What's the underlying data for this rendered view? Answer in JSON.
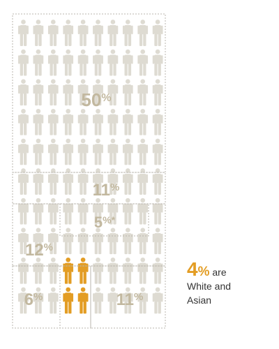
{
  "chart_data": {
    "type": "pictograph",
    "title": "",
    "unit": "%",
    "icons_total": 100,
    "segments": [
      {
        "label": "50",
        "value": 50,
        "symbol": "%",
        "highlight": false
      },
      {
        "label": "11",
        "value": 11,
        "symbol": "%",
        "highlight": false
      },
      {
        "label": "5",
        "value": 5,
        "symbol": "%*",
        "highlight": false
      },
      {
        "label": "12",
        "value": 12,
        "symbol": "%",
        "highlight": false
      },
      {
        "label": "6",
        "value": 6,
        "symbol": "%",
        "highlight": false
      },
      {
        "label": "4",
        "value": 4,
        "symbol": "%",
        "highlight": true
      },
      {
        "label": "11",
        "value": 11,
        "symbol": "%",
        "highlight": false
      }
    ],
    "highlight_color": "#e39d24",
    "base_color": "#dedbd2",
    "label_color": "#c2b89f"
  },
  "callout": {
    "value": "4",
    "symbol": "%",
    "line1_tail": "are",
    "line2": "White and",
    "line3": "Asian"
  }
}
